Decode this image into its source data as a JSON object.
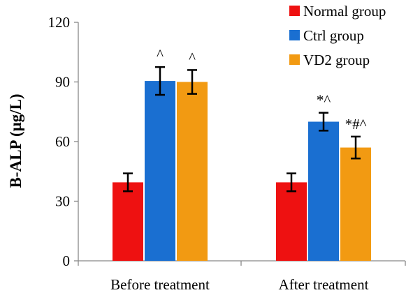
{
  "chart_data": {
    "type": "bar",
    "categories": [
      "Before treatment",
      "After treatment"
    ],
    "series": [
      {
        "name": "Normal group",
        "color": "#ee1111",
        "values": [
          39.5,
          39.5
        ],
        "errors": [
          4.5,
          4.5
        ],
        "annotations": [
          "",
          ""
        ]
      },
      {
        "name": "Ctrl group",
        "color": "#1a6fd1",
        "values": [
          90.5,
          70.0
        ],
        "errors": [
          7.0,
          4.5
        ],
        "annotations": [
          "^",
          "*^"
        ]
      },
      {
        "name": "VD2 group",
        "color": "#f29a12",
        "values": [
          90.0,
          57.0
        ],
        "errors": [
          6.0,
          5.5
        ],
        "annotations": [
          "^",
          "*#^"
        ]
      }
    ],
    "ylabel": "B-ALP (μg/L)",
    "xlabel": "",
    "yticks": [
      0,
      30,
      60,
      90,
      120
    ],
    "ylim": [
      0,
      120
    ],
    "grid": false,
    "legend_position": "top-right"
  }
}
